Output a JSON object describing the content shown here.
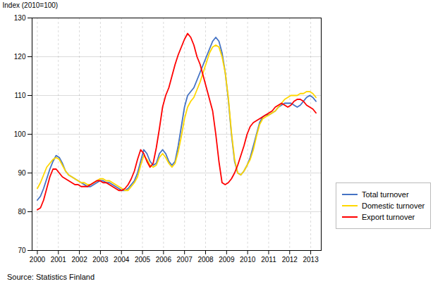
{
  "chart_data": {
    "type": "line",
    "ylabel": "Index (2010=100)",
    "caption": "Source: Statistics Finland",
    "xlim": [
      1999.75,
      2013.5
    ],
    "xticks": [
      2000,
      2001,
      2002,
      2003,
      2004,
      2005,
      2006,
      2007,
      2008,
      2009,
      2010,
      2011,
      2012,
      2013
    ],
    "ylim": [
      70,
      130
    ],
    "yticks": [
      70,
      80,
      90,
      100,
      110,
      120,
      130
    ],
    "grid": true,
    "legend": "right",
    "x": [
      2000.0,
      2000.148876,
      2000.297753,
      2000.446629,
      2000.595506,
      2000.744382,
      2000.893258,
      2001.042135,
      2001.191011,
      2001.339888,
      2001.488764,
      2001.63764,
      2001.786517,
      2001.935393,
      2002.08427,
      2002.233146,
      2002.382022,
      2002.530899,
      2002.679775,
      2002.828652,
      2002.977528,
      2003.126404,
      2003.275281,
      2003.424157,
      2003.573034,
      2003.72191,
      2003.870787,
      2004.019663,
      2004.168539,
      2004.317416,
      2004.466292,
      2004.615169,
      2004.764045,
      2004.912921,
      2005.061798,
      2005.210674,
      2005.359551,
      2005.508427,
      2005.657303,
      2005.80618,
      2005.955056,
      2006.103933,
      2006.252809,
      2006.401685,
      2006.550562,
      2006.699438,
      2006.848315,
      2006.997191,
      2007.146067,
      2007.294944,
      2007.44382,
      2007.592697,
      2007.741573,
      2007.890449,
      2008.039326,
      2008.188202,
      2008.337079,
      2008.485955,
      2008.634831,
      2008.783708,
      2008.932584,
      2009.081461,
      2009.230337,
      2009.379213,
      2009.52809,
      2009.676966,
      2009.825843,
      2009.974719,
      2010.123596,
      2010.272472,
      2010.421348,
      2010.570225,
      2010.719101,
      2010.867978,
      2011.016854,
      2011.16573,
      2011.314607,
      2011.463483,
      2011.61236,
      2011.761236,
      2011.910112,
      2012.058989,
      2012.207865,
      2012.356742,
      2012.505618,
      2012.654494,
      2012.803371,
      2012.952247,
      2013.101124,
      2013.25
    ],
    "series": [
      {
        "name": "Total turnover",
        "color": "#4472C4",
        "values": [
          83.0,
          84.0,
          86.0,
          88.5,
          91.0,
          93.0,
          94.5,
          94.0,
          92.5,
          90.5,
          89.5,
          89.0,
          88.5,
          88.0,
          87.5,
          87.0,
          86.5,
          86.5,
          87.0,
          87.5,
          88.0,
          88.0,
          87.5,
          87.5,
          87.0,
          86.5,
          86.0,
          85.5,
          85.5,
          86.0,
          87.0,
          88.0,
          90.0,
          93.0,
          96.0,
          95.0,
          93.0,
          92.0,
          92.5,
          95.0,
          96.0,
          95.0,
          93.0,
          92.0,
          93.0,
          97.0,
          102.0,
          107.0,
          110.0,
          111.0,
          112.0,
          114.0,
          116.0,
          118.0,
          120.0,
          122.0,
          124.0,
          125.0,
          124.0,
          121.0,
          116.0,
          109.0,
          100.0,
          93.0,
          90.0,
          89.5,
          90.5,
          92.0,
          94.0,
          97.0,
          100.0,
          103.0,
          104.5,
          105.0,
          105.0,
          105.5,
          106.0,
          107.0,
          107.5,
          108.0,
          108.0,
          108.0,
          107.5,
          107.0,
          107.5,
          108.5,
          109.5,
          110.0,
          109.5,
          108.5
        ]
      },
      {
        "name": "Domestic turnover",
        "color": "#FFD700",
        "values": [
          86.0,
          87.5,
          89.5,
          91.5,
          92.5,
          93.5,
          94.0,
          93.5,
          92.0,
          90.5,
          89.5,
          89.0,
          88.5,
          88.0,
          87.5,
          87.5,
          87.0,
          87.0,
          87.5,
          88.0,
          88.5,
          88.5,
          88.0,
          88.0,
          87.5,
          87.0,
          86.5,
          86.0,
          85.5,
          85.5,
          86.5,
          87.5,
          89.0,
          92.0,
          94.5,
          93.5,
          92.0,
          91.5,
          92.0,
          94.0,
          95.0,
          94.0,
          92.5,
          91.5,
          92.5,
          95.5,
          99.5,
          104.0,
          107.0,
          108.5,
          109.5,
          111.5,
          113.5,
          116.0,
          118.5,
          121.0,
          122.5,
          123.0,
          122.5,
          120.0,
          116.0,
          109.5,
          100.5,
          93.5,
          90.0,
          89.5,
          90.5,
          92.0,
          93.5,
          96.0,
          99.5,
          102.5,
          104.0,
          104.5,
          105.0,
          105.5,
          106.0,
          107.0,
          108.0,
          109.0,
          109.5,
          110.0,
          110.0,
          110.0,
          110.5,
          110.5,
          111.0,
          111.0,
          110.5,
          109.5
        ]
      },
      {
        "name": "Export turnover",
        "color": "#FF0000",
        "values": [
          80.5,
          81.0,
          83.0,
          86.0,
          89.0,
          91.0,
          91.0,
          90.0,
          89.0,
          88.5,
          88.0,
          87.5,
          87.0,
          87.0,
          86.5,
          86.5,
          86.5,
          87.0,
          87.5,
          88.0,
          88.0,
          87.5,
          87.5,
          87.0,
          86.5,
          86.0,
          85.5,
          85.5,
          86.0,
          87.0,
          88.5,
          90.5,
          93.5,
          96.0,
          95.0,
          93.0,
          91.5,
          92.5,
          96.5,
          101.5,
          107.0,
          110.0,
          112.0,
          115.0,
          118.0,
          120.5,
          122.5,
          124.5,
          126.0,
          125.0,
          123.0,
          120.0,
          118.0,
          115.0,
          112.0,
          109.0,
          106.0,
          100.0,
          93.0,
          87.5,
          87.0,
          87.5,
          88.5,
          90.0,
          92.0,
          94.5,
          97.0,
          100.0,
          102.0,
          103.0,
          103.5,
          104.0,
          104.5,
          105.0,
          105.5,
          106.0,
          107.0,
          107.5,
          108.0,
          107.5,
          107.0,
          107.5,
          108.5,
          109.0,
          109.0,
          108.5,
          107.5,
          107.0,
          106.5,
          105.5
        ]
      }
    ]
  }
}
